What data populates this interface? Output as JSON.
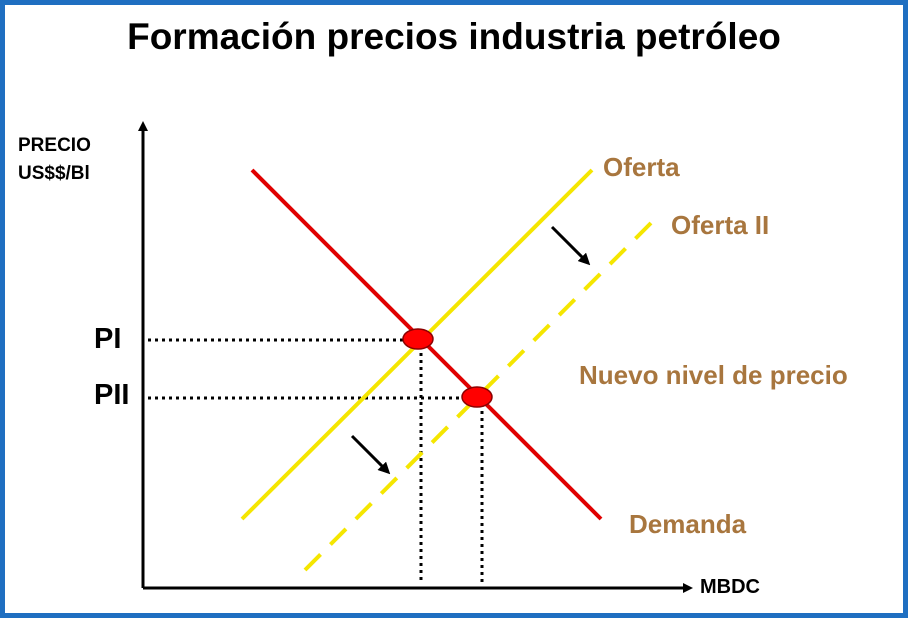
{
  "title": "Formación precios industria petróleo",
  "y_axis": {
    "label_line1": "PRECIO",
    "label_line2": "US$$/Bl"
  },
  "x_axis": {
    "label": "MBDC"
  },
  "price_levels": {
    "p1": "PI",
    "p2": "PII"
  },
  "curves": {
    "supply": "Oferta",
    "supply_shifted": "Oferta II",
    "demand": "Demanda"
  },
  "annotation": "Nuevo nivel de precio",
  "colors": {
    "border": "#1f6fc1",
    "demand": "#e00000",
    "supply": "#f5e600",
    "supply_shifted": "#f5e600",
    "equilibrium_point": "#ff0000",
    "label_brown": "#a8763e"
  }
}
